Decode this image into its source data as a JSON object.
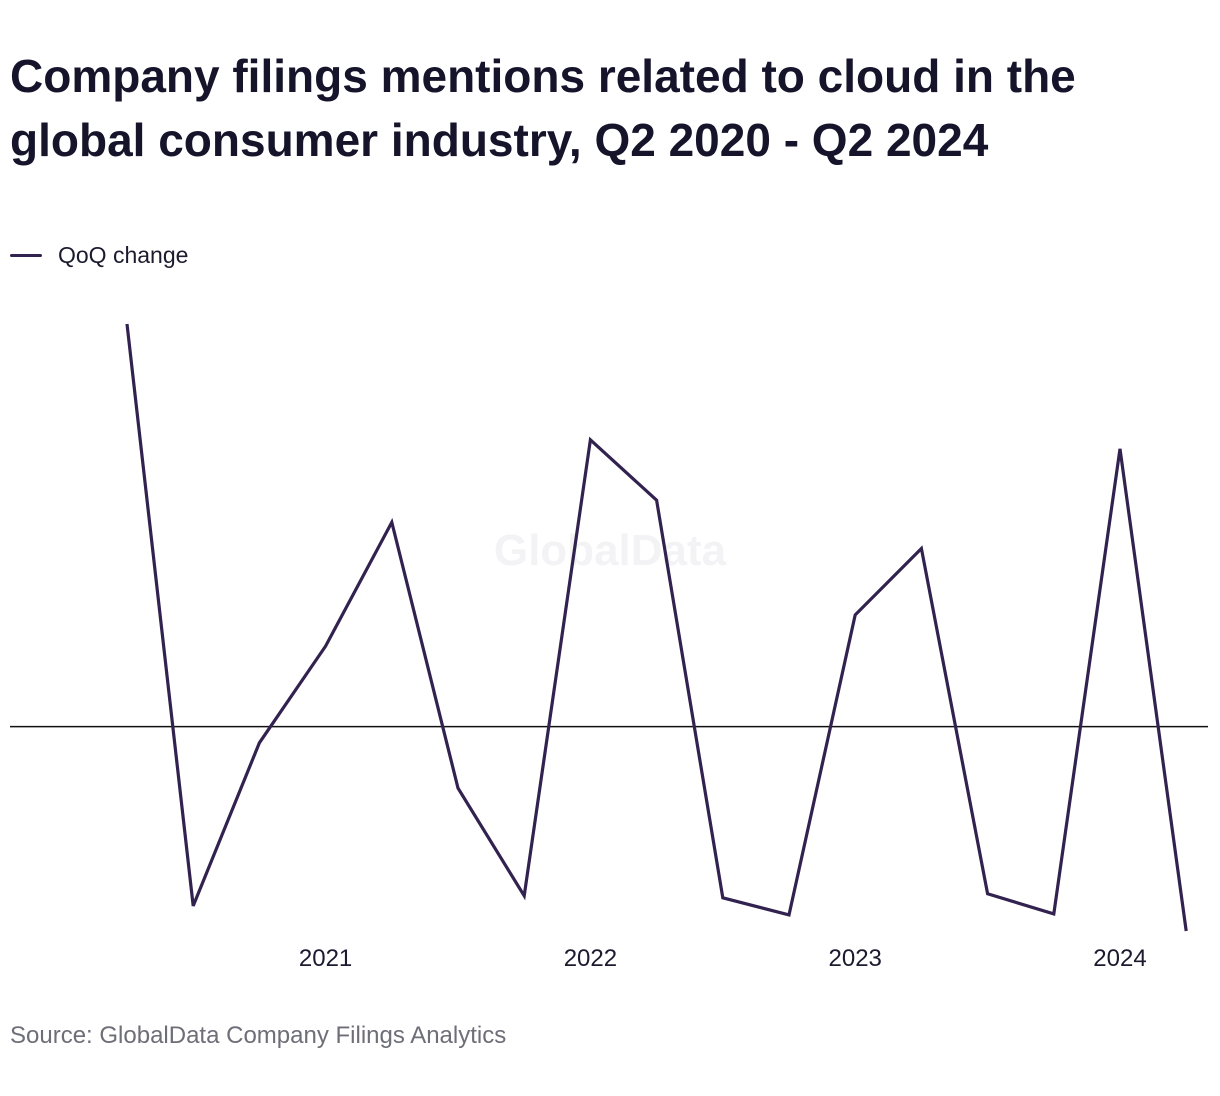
{
  "title": "Company filings mentions related to cloud in the global consumer industry, Q2 2020 - Q2 2024",
  "source": "Source: GlobalData Company Filings Analytics",
  "watermark": "GlobalData",
  "colors": {
    "series": "#32224f",
    "baseline": "#111111",
    "watermark": "#f3f3f5"
  },
  "chart_data": {
    "type": "line",
    "title": "Company filings mentions related to cloud in the global consumer industry, Q2 2020 - Q2 2024",
    "xlabel": "",
    "ylabel": "",
    "grid": false,
    "legend_position": "top-left",
    "x": [
      "Q2 2020",
      "Q3 2020",
      "Q4 2020",
      "Q1 2021",
      "Q2 2021",
      "Q3 2021",
      "Q4 2021",
      "Q1 2022",
      "Q2 2022",
      "Q3 2022",
      "Q4 2022",
      "Q1 2023",
      "Q2 2023",
      "Q3 2023",
      "Q4 2023",
      "Q1 2024",
      "Q2 2024"
    ],
    "x_tick_labels": [
      "2021",
      "2022",
      "2023",
      "2024"
    ],
    "x_tick_positions": [
      "Q1 2021",
      "Q1 2022",
      "Q1 2023",
      "Q1 2024"
    ],
    "ylim": [
      -20,
      40
    ],
    "series": [
      {
        "name": "QoQ change",
        "values": [
          40,
          -17.8,
          -1.6,
          8.0,
          20.3,
          -6.1,
          -16.8,
          28.5,
          22.5,
          -17.0,
          -18.7,
          11.1,
          17.7,
          -16.6,
          -18.6,
          27.6,
          -20.3
        ]
      }
    ]
  }
}
